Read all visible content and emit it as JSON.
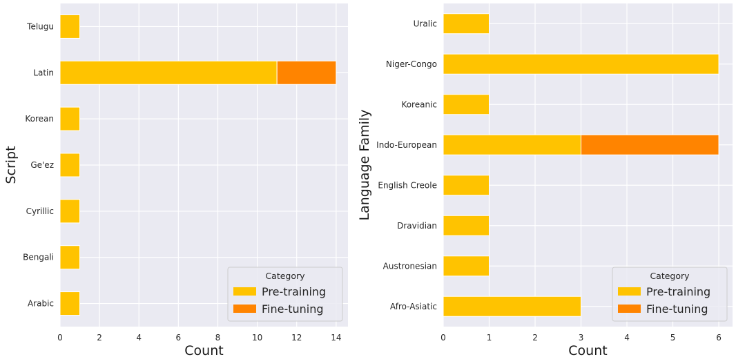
{
  "colors": {
    "background": "#eaeaf2",
    "grid": "#ffffff",
    "pretraining": "#ffc300",
    "finetuning": "#ff8400"
  },
  "chart_data": [
    {
      "type": "bar",
      "orientation": "horizontal",
      "stacked": true,
      "categories": [
        "Arabic",
        "Bengali",
        "Cyrillic",
        "Ge'ez",
        "Korean",
        "Latin",
        "Telugu"
      ],
      "series": [
        {
          "name": "Pre-training",
          "values": [
            1,
            1,
            1,
            1,
            1,
            11,
            1
          ]
        },
        {
          "name": "Fine-tuning",
          "values": [
            0,
            0,
            0,
            0,
            0,
            3,
            0
          ]
        }
      ],
      "xlabel": "Count",
      "ylabel": "Script",
      "xlim": [
        0,
        14.6
      ],
      "xticks": [
        0,
        2,
        4,
        6,
        8,
        10,
        12,
        14
      ],
      "legend": {
        "title": "Category",
        "placement": "bottom-right"
      },
      "grid": true
    },
    {
      "type": "bar",
      "orientation": "horizontal",
      "stacked": true,
      "categories": [
        "Afro-Asiatic",
        "Austronesian",
        "Dravidian",
        "English Creole",
        "Indo-European",
        "Koreanic",
        "Niger-Congo",
        "Uralic"
      ],
      "series": [
        {
          "name": "Pre-training",
          "values": [
            3,
            1,
            1,
            1,
            3,
            1,
            6,
            1
          ]
        },
        {
          "name": "Fine-tuning",
          "values": [
            0,
            0,
            0,
            0,
            3,
            0,
            0,
            0
          ]
        }
      ],
      "xlabel": "Count",
      "ylabel": "Language Family",
      "xlim": [
        0,
        6.3
      ],
      "xticks": [
        0,
        1,
        2,
        3,
        4,
        5,
        6
      ],
      "legend": {
        "title": "Category",
        "placement": "bottom-right"
      },
      "grid": true
    }
  ]
}
